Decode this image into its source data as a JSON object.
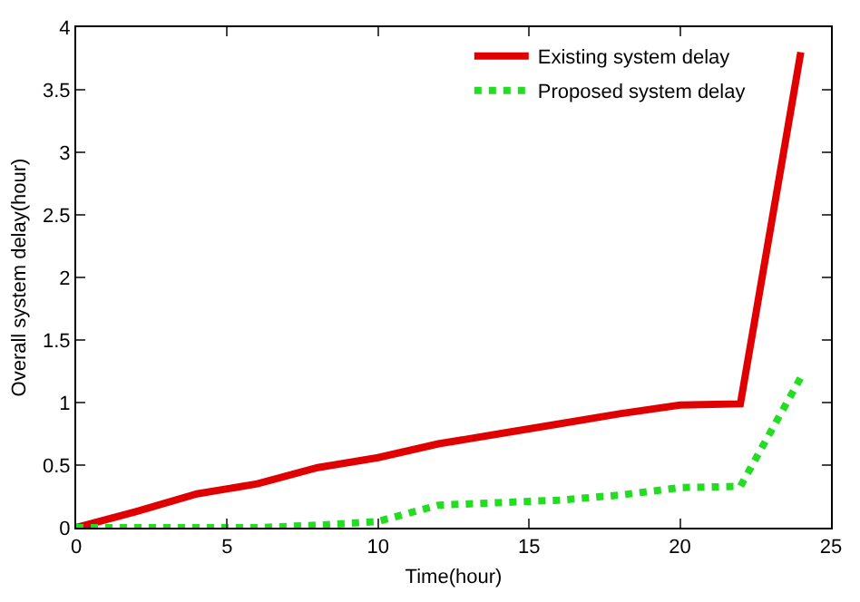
{
  "chart_data": {
    "type": "line",
    "xlabel": "Time(hour)",
    "ylabel": "Overall system delay(hour)",
    "x": [
      0,
      2,
      4,
      6,
      8,
      10,
      12,
      14,
      16,
      18,
      20,
      22,
      24
    ],
    "series": [
      {
        "name": "Existing system delay",
        "color": "#e00000",
        "line_style": "solid",
        "values": [
          0,
          0.13,
          0.27,
          0.35,
          0.48,
          0.56,
          0.67,
          0.75,
          0.83,
          0.91,
          0.98,
          0.99,
          3.8
        ]
      },
      {
        "name": "Proposed system delay",
        "color": "#22dd22",
        "line_style": "dotted",
        "values": [
          0,
          0,
          0,
          0,
          0.02,
          0.05,
          0.18,
          0.2,
          0.22,
          0.26,
          0.32,
          0.33,
          1.2
        ]
      }
    ],
    "xlim": [
      0,
      25
    ],
    "xticks": [
      0,
      5,
      10,
      15,
      20,
      25
    ],
    "ylim": [
      0,
      4
    ],
    "yticks": [
      0,
      0.5,
      1,
      1.5,
      2,
      2.5,
      3,
      3.5,
      4
    ],
    "grid": false,
    "legend": "top right",
    "marker": "none"
  }
}
